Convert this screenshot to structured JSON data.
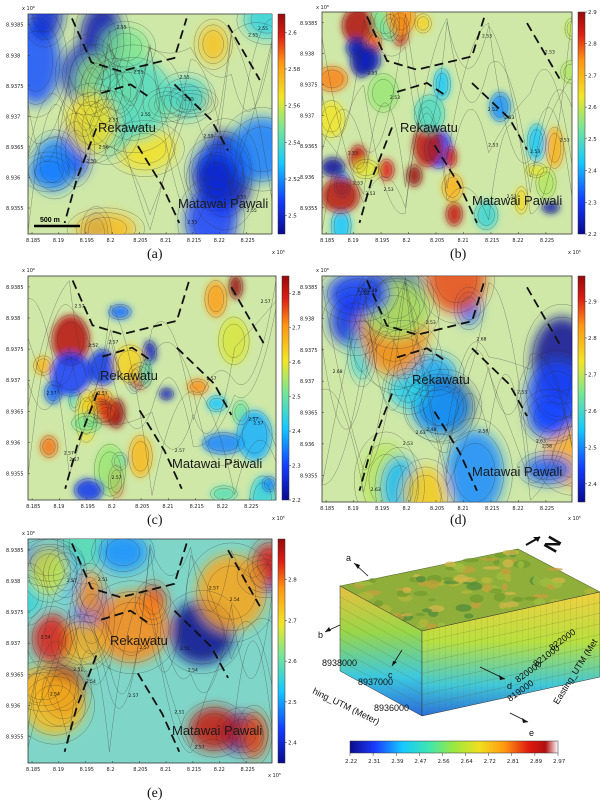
{
  "figure": {
    "scale_bar": "500 m",
    "places": {
      "rekawatu": "Rekawatu",
      "matawai": "Matawai Pawali"
    }
  },
  "axes": {
    "x_ticks": [
      "8.185",
      "8.19",
      "8.195",
      "8.2",
      "8.205",
      "8.21",
      "8.215",
      "8.22",
      "8.225"
    ],
    "y_ticks": [
      "8.9385",
      "8.938",
      "8.9375",
      "8.937",
      "8.9365",
      "8.936",
      "8.9355"
    ],
    "x_exp": "x 10⁵",
    "y_exp": "x 10⁶"
  },
  "chart_data": [
    {
      "type": "heatmap",
      "label": "(a)",
      "colorbar": {
        "ticks": [
          "2.6",
          "2.58",
          "2.56",
          "2.54",
          "2.52",
          "2.5"
        ],
        "range": [
          2.49,
          2.61
        ]
      },
      "contour_labels": [
        "2.55",
        "2.55",
        "2.55",
        "2.55",
        "2.55",
        "2.55",
        "2.55",
        "2.55",
        "2.55",
        "2.55",
        "2.55",
        "2.56",
        "2.55",
        "2.55"
      ]
    },
    {
      "type": "heatmap",
      "label": "(b)",
      "colorbar": {
        "ticks": [
          "2.9",
          "2.8",
          "2.7",
          "2.6",
          "2.5",
          "2.4",
          "2.3",
          "2.2"
        ],
        "range": [
          2.2,
          2.9
        ]
      },
      "contour_labels": [
        "2.53",
        "2.53",
        "2.53",
        "2.53",
        "2.53",
        "2.53",
        "2.53",
        "2.53",
        "2.53",
        "2.53",
        "2.53",
        "2.53",
        "2.53",
        "2.53"
      ]
    },
    {
      "type": "heatmap",
      "label": "(c)",
      "colorbar": {
        "ticks": [
          "2.8",
          "2.7",
          "2.6",
          "2.5",
          "2.4",
          "2.3",
          "2.2"
        ],
        "range": [
          2.2,
          2.85
        ]
      },
      "contour_labels": [
        "2.57",
        "2.57",
        "2.57",
        "2.57",
        "2.57",
        "2.57",
        "2.57",
        "2.57",
        "2.57",
        "2.57",
        "2.57",
        "2.57",
        "2.57",
        "2.57"
      ]
    },
    {
      "type": "heatmap",
      "label": "(d)",
      "colorbar": {
        "ticks": [
          "2.9",
          "2.8",
          "2.7",
          "2.6",
          "2.5",
          "2.4"
        ],
        "range": [
          2.35,
          2.97
        ]
      },
      "contour_labels": [
        "2.68",
        "2.63",
        "2.58",
        "2.53",
        "2.48",
        "2.68",
        "2.63",
        "2.58",
        "2.53",
        "2.68",
        "2.63",
        "2.58",
        "2.53",
        "2.48"
      ]
    },
    {
      "type": "heatmap",
      "label": "(e)",
      "colorbar": {
        "ticks": [
          "2.8",
          "2.7",
          "2.6",
          "2.5",
          "2.4"
        ],
        "range": [
          2.35,
          2.9
        ]
      },
      "contour_labels": [
        "2.54",
        "2.57",
        "2.51",
        "2.54",
        "2.57",
        "2.51",
        "2.54",
        "2.57",
        "2.51",
        "2.54",
        "2.57",
        "2.51",
        "2.54",
        "2.57"
      ]
    }
  ],
  "block3d": {
    "arrows": [
      "a",
      "b",
      "c",
      "d",
      "e"
    ],
    "north_label": "N",
    "northing_label": "hing_UTM (Meter)",
    "northing_ticks": [
      "8938000",
      "8937000",
      "8936000"
    ],
    "easting_label": "Easting_UTM (Met",
    "easting_ticks": [
      "822000",
      "821000",
      "820000",
      "819000"
    ],
    "colorbar_ticks": [
      "2.22",
      "2.31",
      "2.39",
      "2.47",
      "2.56",
      "2.64",
      "2.72",
      "2.81",
      "2.89",
      "2.97"
    ]
  }
}
